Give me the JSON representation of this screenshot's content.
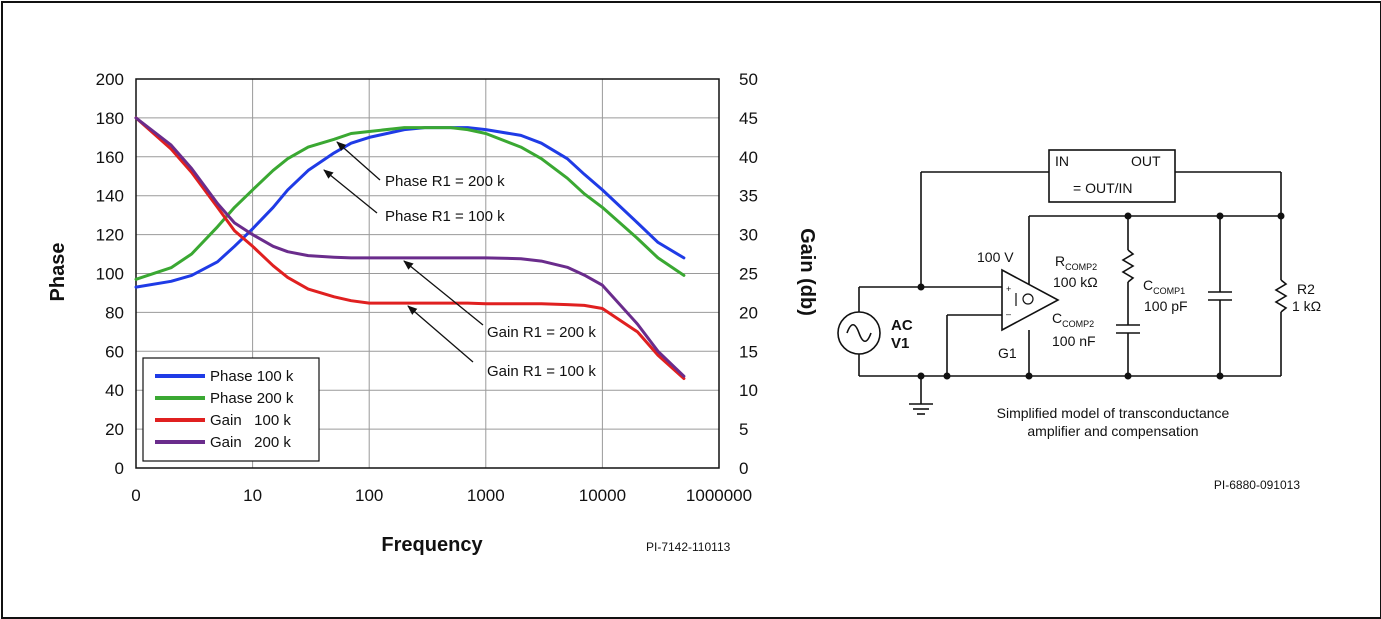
{
  "chart_data": {
    "type": "line",
    "xlabel": "Frequency",
    "ylabel": "Phase",
    "y2label": "Gain (db)",
    "x_scale": "log",
    "x_ticks": [
      "0",
      "10",
      "100",
      "1000",
      "10000",
      "1000000"
    ],
    "y_ticks": [
      0,
      20,
      40,
      60,
      80,
      100,
      120,
      140,
      160,
      180,
      200
    ],
    "y2_ticks": [
      0,
      5,
      10,
      15,
      20,
      25,
      30,
      35,
      40,
      45,
      50
    ],
    "ylim": [
      0,
      200
    ],
    "y2lim": [
      0,
      50
    ],
    "grid": true,
    "legend_position": "bottom-left",
    "series": [
      {
        "name": "Phase 100 k",
        "axis": "left",
        "color": "#1f3be6",
        "x": [
          1,
          2,
          3,
          5,
          7,
          10,
          15,
          20,
          30,
          50,
          70,
          100,
          200,
          300,
          500,
          700,
          1000,
          2000,
          3000,
          5000,
          7000,
          10000,
          20000,
          30000,
          50000
        ],
        "y": [
          93,
          96,
          99,
          106,
          114,
          123,
          134,
          143,
          153,
          162,
          167,
          170,
          174,
          175,
          175,
          175,
          174,
          171,
          167,
          159,
          151,
          143,
          126,
          116,
          108
        ]
      },
      {
        "name": "Phase 200 k",
        "axis": "left",
        "color": "#3aa832",
        "x": [
          1,
          2,
          3,
          5,
          7,
          10,
          15,
          20,
          30,
          50,
          70,
          100,
          200,
          300,
          500,
          700,
          1000,
          2000,
          3000,
          5000,
          7000,
          10000,
          20000,
          30000,
          50000
        ],
        "y": [
          97,
          103,
          110,
          124,
          134,
          143,
          153,
          159,
          165,
          169,
          172,
          173,
          175,
          175,
          175,
          174,
          172,
          165,
          159,
          149,
          141,
          134,
          118,
          108,
          99
        ]
      },
      {
        "name": "Gain   100 k",
        "axis": "right",
        "color": "#e02020",
        "x": [
          1,
          2,
          3,
          5,
          7,
          10,
          15,
          20,
          30,
          50,
          70,
          100,
          200,
          300,
          500,
          700,
          1000,
          2000,
          3000,
          5000,
          7000,
          10000,
          20000,
          30000,
          50000
        ],
        "y": [
          45,
          41,
          38,
          33.5,
          30.5,
          28.5,
          26,
          24.5,
          23,
          22,
          21.5,
          21.2,
          21.2,
          21.2,
          21.2,
          21.2,
          21.1,
          21.1,
          21.1,
          21,
          20.9,
          20.5,
          17.5,
          14.5,
          11.5
        ]
      },
      {
        "name": "Gain   200 k",
        "axis": "right",
        "color": "#6a2c8c",
        "x": [
          1,
          2,
          3,
          5,
          7,
          10,
          15,
          20,
          30,
          50,
          70,
          100,
          200,
          300,
          500,
          700,
          1000,
          2000,
          3000,
          5000,
          7000,
          10000,
          20000,
          30000,
          50000
        ],
        "y": [
          45,
          41.5,
          38.5,
          34,
          31.5,
          30,
          28.5,
          27.8,
          27.3,
          27.1,
          27,
          27,
          27,
          27,
          27,
          27,
          27,
          26.9,
          26.6,
          25.8,
          24.8,
          23.5,
          18.5,
          15,
          11.8
        ]
      }
    ],
    "annotations": [
      "Phase R1 = 200 k",
      "Phase R1 = 100 k",
      "Gain R1 = 200 k",
      "Gain R1 = 100 k"
    ],
    "part_number": "PI-7142-110113"
  },
  "circuit": {
    "box_in": "IN",
    "box_out": "OUT",
    "box_formula": "= OUT/IN",
    "amp_voltage": "100 V",
    "amp_label": "G1",
    "rcomp2_label": "R",
    "rcomp2_sub": "COMP2",
    "rcomp2_value": "100 kΩ",
    "ccomp1_label": "C",
    "ccomp1_sub": "COMP1",
    "ccomp1_value": "100 pF",
    "ccomp2_label": "C",
    "ccomp2_sub": "COMP2",
    "ccomp2_value": "100 nF",
    "r2_label": "R2",
    "r2_value": "1 kΩ",
    "source_label_1": "AC",
    "source_label_2": "V1",
    "caption_line_1": "Simplified model of transconductance",
    "caption_line_2": "amplifier and compensation",
    "part_number": "PI-6880-091013"
  }
}
